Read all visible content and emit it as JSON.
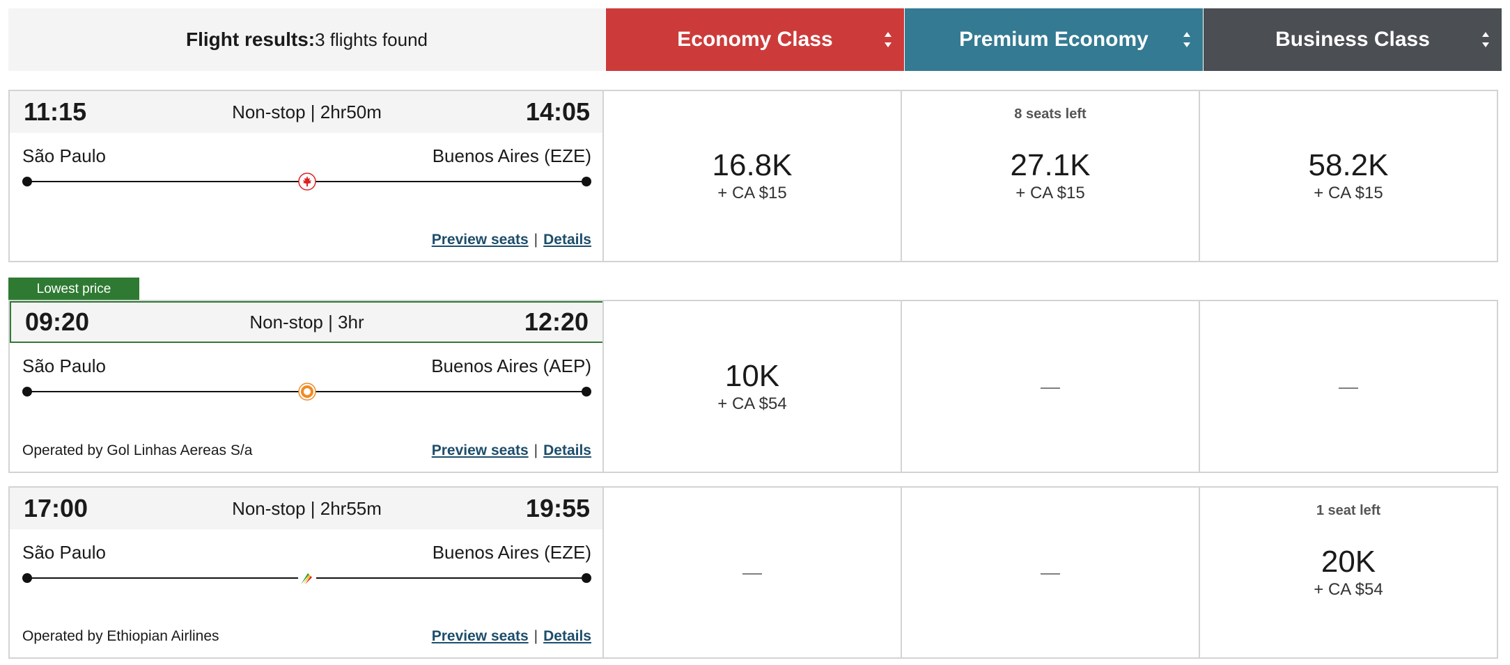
{
  "header": {
    "title_label": "Flight results:",
    "count_text": "3 flights found",
    "classes": [
      {
        "label": "Economy Class",
        "color": "#cc3b3a"
      },
      {
        "label": "Premium Economy",
        "color": "#337a92"
      },
      {
        "label": "Business Class",
        "color": "#4b4e52"
      }
    ]
  },
  "badge": {
    "label": "Lowest price",
    "color": "#2f7a33"
  },
  "flights": [
    {
      "depart": "11:15",
      "arrive": "14:05",
      "duration": "Non-stop | 2hr50m",
      "from": "São Paulo",
      "to": "Buenos Aires (EZE)",
      "airline_icon": "air-canada-maple-leaf-icon",
      "operated_by": "",
      "preview_label": "Preview seats",
      "separator": "|",
      "details_label": "Details",
      "fares": [
        {
          "seats": "",
          "miles": "16.8K",
          "tax": "+ CA $15"
        },
        {
          "seats": "8 seats left",
          "miles": "27.1K",
          "tax": "+ CA $15"
        },
        {
          "seats": "",
          "miles": "58.2K",
          "tax": "+ CA $15"
        }
      ]
    },
    {
      "depart": "09:20",
      "arrive": "12:20",
      "duration": "Non-stop | 3hr",
      "from": "São Paulo",
      "to": "Buenos Aires (AEP)",
      "airline_icon": "gol-airline-icon",
      "operated_by": "Operated by Gol Linhas Aereas S/a",
      "preview_label": "Preview seats",
      "separator": "|",
      "details_label": "Details",
      "fares": [
        {
          "seats": "",
          "miles": "10K",
          "tax": "+ CA $54"
        },
        {
          "dash": "—"
        },
        {
          "dash": "—"
        }
      ]
    },
    {
      "depart": "17:00",
      "arrive": "19:55",
      "duration": "Non-stop | 2hr55m",
      "from": "São Paulo",
      "to": "Buenos Aires (EZE)",
      "airline_icon": "ethiopian-airlines-icon",
      "operated_by": "Operated by Ethiopian Airlines",
      "preview_label": "Preview seats",
      "separator": "|",
      "details_label": "Details",
      "fares": [
        {
          "dash": "—"
        },
        {
          "dash": "—"
        },
        {
          "seats": "1 seat left",
          "miles": "20K",
          "tax": "+ CA $54"
        }
      ]
    }
  ]
}
